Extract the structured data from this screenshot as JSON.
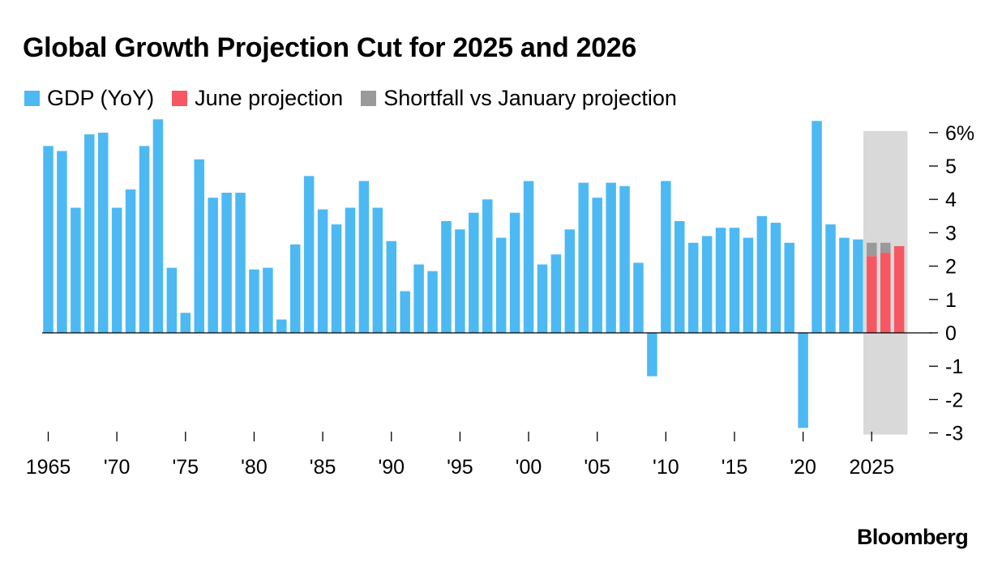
{
  "title": "Global Growth Projection Cut for 2025 and 2026",
  "source": "Bloomberg",
  "colors": {
    "gdp": "#4cb9f3",
    "june_projection": "#f65762",
    "shortfall": "#9a9a9a",
    "projection_band": "#d9d9d9"
  },
  "chart_data": {
    "type": "bar",
    "title": "Global Growth Projection Cut for 2025 and 2026",
    "xlabel": "",
    "ylabel": "",
    "ylim": [
      -3,
      6
    ],
    "y_ticks": [
      "6%",
      "5",
      "4",
      "3",
      "2",
      "1",
      "0",
      "-1",
      "-2",
      "-3"
    ],
    "y_tick_values": [
      6,
      5,
      4,
      3,
      2,
      1,
      0,
      -1,
      -2,
      -3
    ],
    "x_ticks": [
      {
        "year": 1965,
        "label": "1965"
      },
      {
        "year": 1970,
        "label": "'70"
      },
      {
        "year": 1975,
        "label": "'75"
      },
      {
        "year": 1980,
        "label": "'80"
      },
      {
        "year": 1985,
        "label": "'85"
      },
      {
        "year": 1990,
        "label": "'90"
      },
      {
        "year": 1995,
        "label": "'95"
      },
      {
        "year": 2000,
        "label": "'00"
      },
      {
        "year": 2005,
        "label": "'05"
      },
      {
        "year": 2010,
        "label": "'10"
      },
      {
        "year": 2015,
        "label": "'15"
      },
      {
        "year": 2020,
        "label": "'20"
      },
      {
        "year": 2025,
        "label": "2025"
      }
    ],
    "legend_position": "top-left",
    "projection_shading": {
      "from_year": 2025,
      "to_year": 2027
    },
    "series": [
      {
        "name": "GDP (YoY)",
        "years": [
          1965,
          1966,
          1967,
          1968,
          1969,
          1970,
          1971,
          1972,
          1973,
          1974,
          1975,
          1976,
          1977,
          1978,
          1979,
          1980,
          1981,
          1982,
          1983,
          1984,
          1985,
          1986,
          1987,
          1988,
          1989,
          1990,
          1991,
          1992,
          1993,
          1994,
          1995,
          1996,
          1997,
          1998,
          1999,
          2000,
          2001,
          2002,
          2003,
          2004,
          2005,
          2006,
          2007,
          2008,
          2009,
          2010,
          2011,
          2012,
          2013,
          2014,
          2015,
          2016,
          2017,
          2018,
          2019,
          2020,
          2021,
          2022,
          2023,
          2024
        ],
        "values": [
          5.6,
          5.45,
          3.75,
          5.95,
          6.0,
          3.75,
          4.3,
          5.6,
          6.4,
          1.95,
          0.6,
          5.2,
          4.05,
          4.2,
          4.2,
          1.9,
          1.95,
          0.4,
          2.65,
          4.7,
          3.7,
          3.25,
          3.75,
          4.55,
          3.75,
          2.75,
          1.25,
          2.05,
          1.85,
          3.35,
          3.1,
          3.6,
          4.0,
          2.85,
          3.6,
          4.55,
          2.05,
          2.35,
          3.1,
          4.5,
          4.05,
          4.5,
          4.4,
          2.1,
          -1.3,
          4.55,
          3.35,
          2.7,
          2.9,
          3.15,
          3.15,
          2.85,
          3.5,
          3.3,
          2.7,
          -2.85,
          6.35,
          3.25,
          2.85,
          2.8
        ]
      },
      {
        "name": "June projection",
        "years": [
          2025,
          2026,
          2027
        ],
        "values": [
          2.3,
          2.4,
          2.6
        ]
      },
      {
        "name": "Shortfall vs January projection",
        "years": [
          2025,
          2026
        ],
        "values": [
          0.4,
          0.3
        ]
      }
    ]
  }
}
